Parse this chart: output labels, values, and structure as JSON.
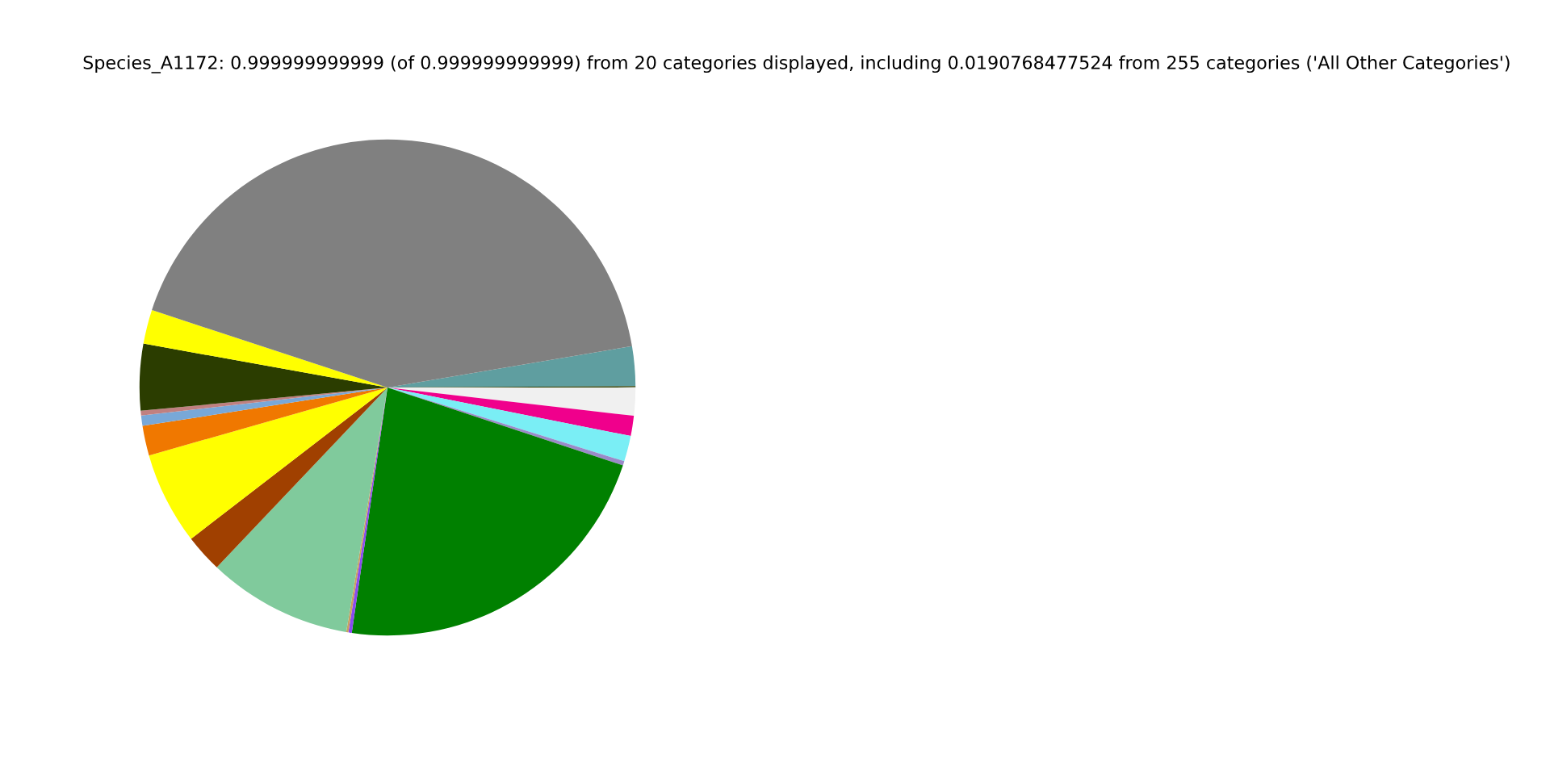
{
  "chart_data": {
    "type": "pie",
    "title": "Species_A1172: 0.999999999999 (of 0.999999999999) from 20 categories displayed, including 0.0190768477524 from 255 categories ('All Other Categories')",
    "categories": [
      null,
      null,
      null,
      null,
      null,
      null,
      null,
      null,
      null,
      null,
      null,
      null,
      null,
      null,
      null,
      null,
      null,
      null
    ],
    "values": [
      2.58,
      0.08,
      1.83,
      1.31,
      1.67,
      0.28,
      22.22,
      0.22,
      0.14,
      9.42,
      2.47,
      6.03,
      1.94,
      0.67,
      0.31,
      4.33,
      2.22,
      42.28
    ],
    "colors": [
      "#5f9ea0",
      "#2d3d00",
      "#f0f0f0",
      "#f0008c",
      "#7aeef5",
      "#9a8ac8",
      "#008000",
      "#8a4af0",
      "#c8a060",
      "#80ca9c",
      "#a04000",
      "#ffff00",
      "#f07800",
      "#78a8d8",
      "#c08080",
      "#2b3d00",
      "#ffff00",
      "#808080"
    ],
    "legend": false
  }
}
